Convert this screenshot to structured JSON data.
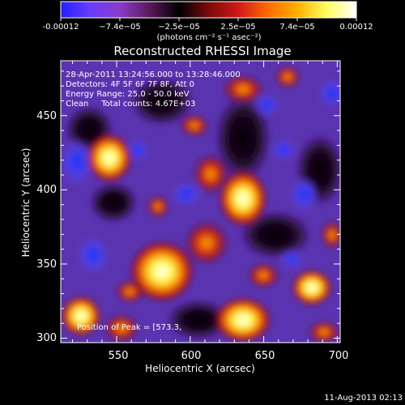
{
  "colorbar": {
    "ticks": [
      "-0.00012",
      "−7.4e−05",
      "−2.5e−05",
      "2.5e−05",
      "7.4e−05",
      "0.00012"
    ],
    "unit_label": "(photons cm⁻² s⁻¹ asec⁻²)",
    "stops": [
      "#2020ff",
      "#6a3cff",
      "#8a3cc8",
      "#5a1a5a",
      "#000000",
      "#7a0a0a",
      "#d01818",
      "#ff6a00",
      "#ffb000",
      "#ffff60",
      "#ffffff"
    ]
  },
  "image": {
    "title": "Reconstructed RHESSI Image",
    "info_lines": [
      "28-Apr-2011 13:24:56.000 to 13:28:46.000",
      "Detectors: 4F 5F 6F 7F 8F, Att 0",
      "Energy Range: 25.0 - 50.0 keV",
      "Clean     Total counts: 4.67E+03"
    ],
    "peak_label": "Position of Peak = [573.3,",
    "xlabel": "Heliocentric X (arcsec)",
    "ylabel": "Heliocentric Y (arcsec)",
    "xlim": [
      512,
      702
    ],
    "ylim": [
      297,
      487
    ],
    "xticks": [
      "550",
      "600",
      "650",
      "700"
    ],
    "yticks": [
      "300",
      "350",
      "400",
      "450"
    ]
  },
  "footer": {
    "timestamp": "11-Aug-2013 02:13"
  }
}
